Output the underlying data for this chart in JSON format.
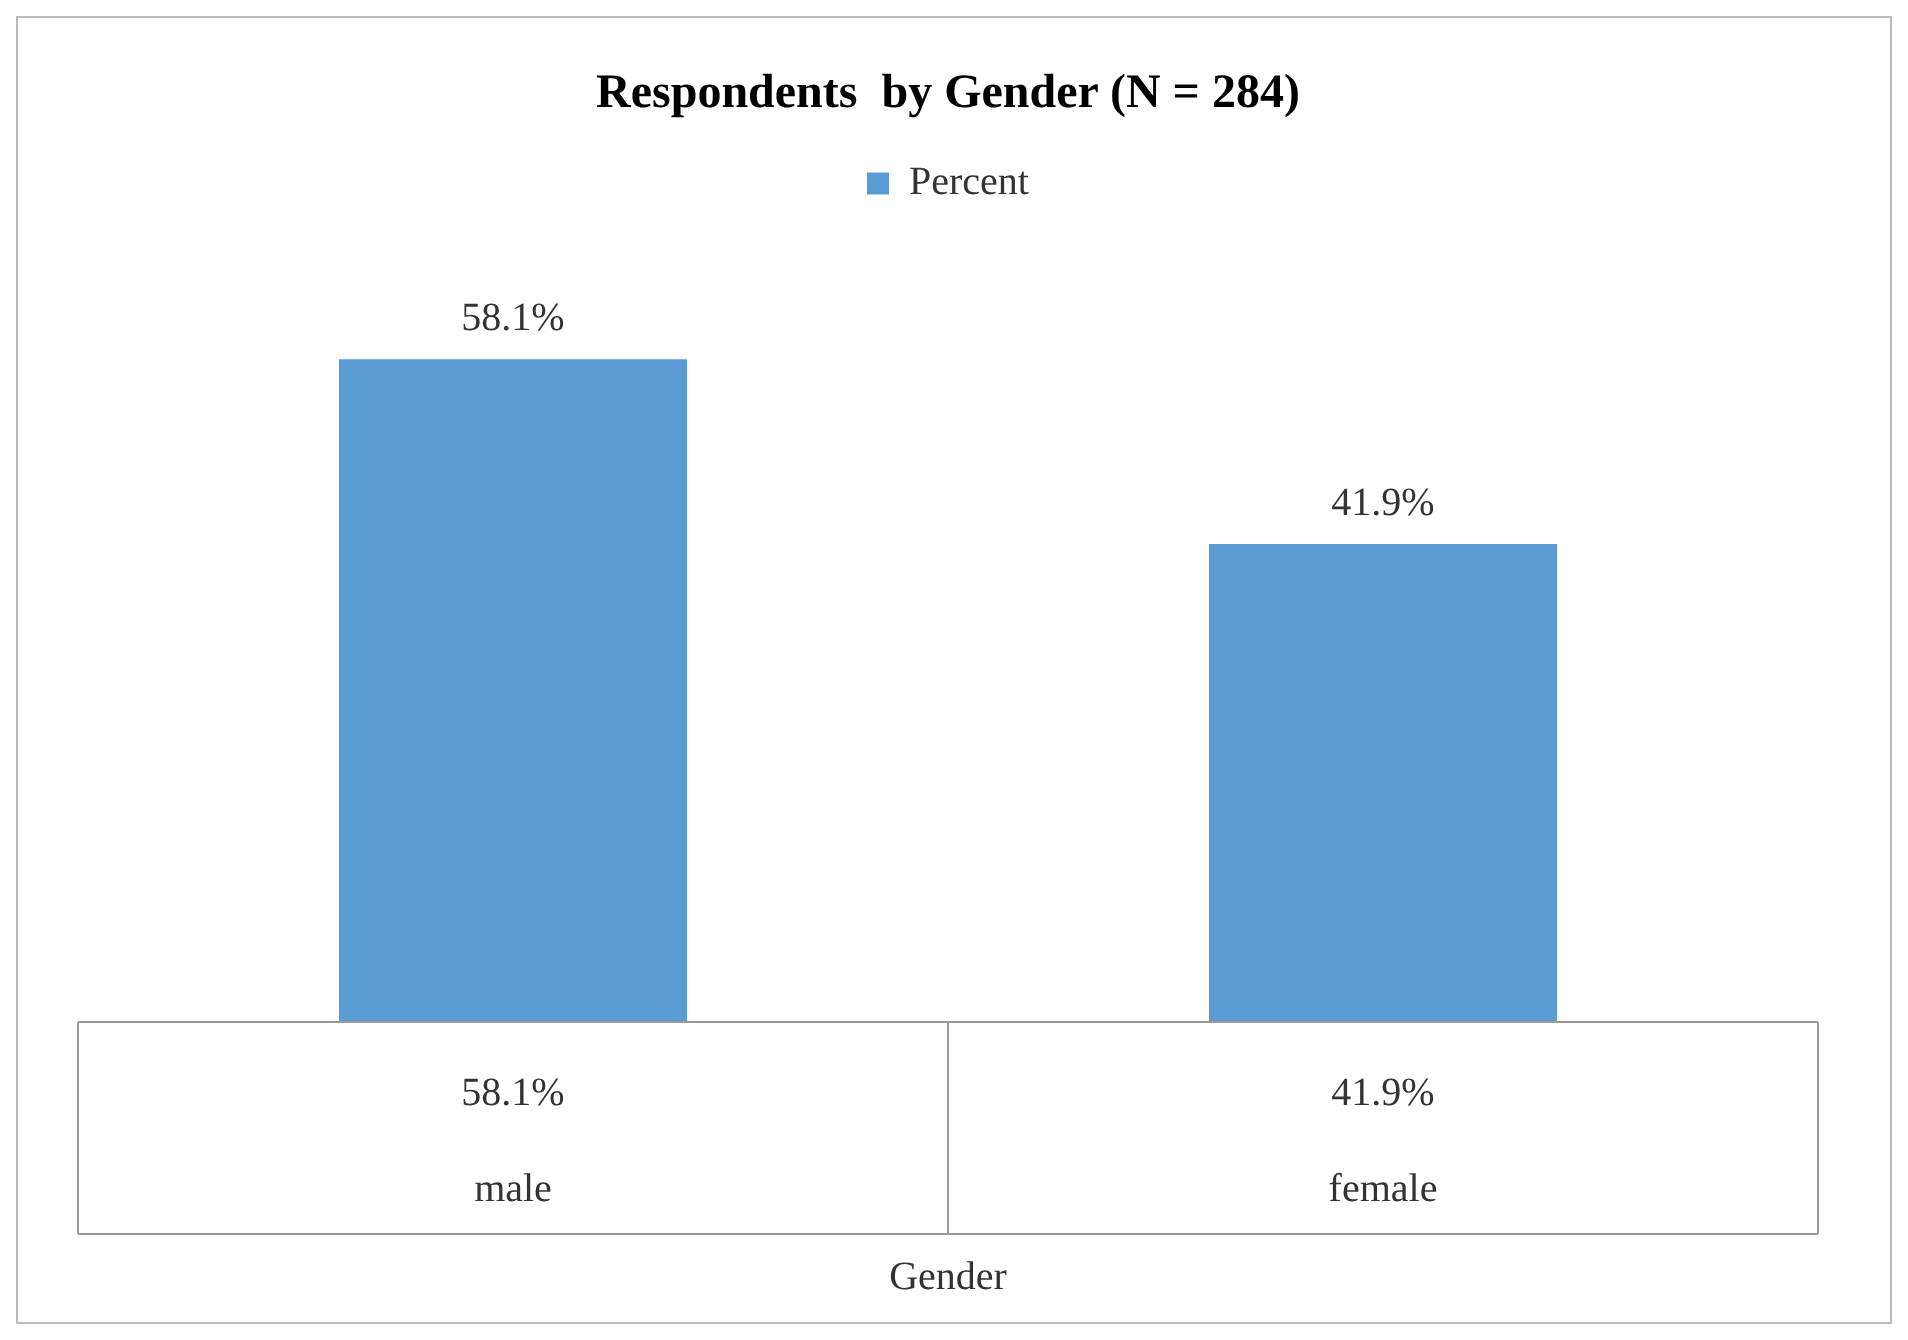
{
  "chart_data": {
    "type": "bar",
    "title": "Respondents  by Gender (N = 284)",
    "xlabel": "Gender",
    "categories": [
      "male",
      "female"
    ],
    "series": [
      {
        "name": "Percent",
        "color": "#5b9bd5",
        "values": [
          58.1,
          41.9
        ],
        "value_labels": [
          "58.1%",
          "41.9%"
        ]
      }
    ],
    "legend": "top"
  }
}
